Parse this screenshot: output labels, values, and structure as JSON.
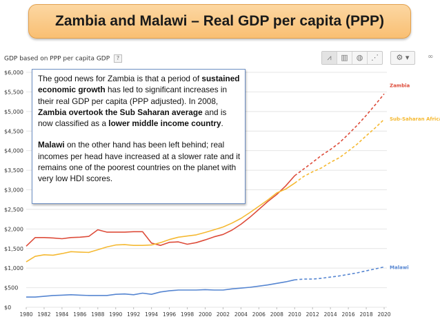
{
  "title": "Zambia and Malawi – Real GDP per capita (PPP)",
  "chart_header": {
    "label": "GDP based on PPP per capita GDP",
    "help": "?"
  },
  "toolbar": {
    "view_icons": [
      "line-chart-icon",
      "bar-chart-icon",
      "map-icon",
      "scatter-chart-icon"
    ],
    "view_glyphs": [
      "⩘",
      "▥",
      "◍",
      "⋰"
    ],
    "gear_glyph": "⚙ ▾",
    "link_glyph": "∞"
  },
  "note": {
    "p1_a": "The good news for Zambia is that a period of ",
    "p1_b": "sustained economic growth",
    "p1_c": " has led to significant increases in their real GDP per capita (PPP adjusted). In 2008, ",
    "p1_d": "Zambia overtook the Sub Saharan average",
    "p1_e": " and is now classified as a ",
    "p1_f": "lower middle income country",
    "p1_g": ".",
    "p2_a": "Malawi",
    "p2_b": " on the other hand has been left behind; real incomes per head have increased at a slower rate and it remains one of the poorest countries on the planet with very low HDI scores."
  },
  "colors": {
    "zambia": "#dd4b39",
    "ssa": "#f5b932",
    "malawi": "#5585d1",
    "grid": "#e4e4e4",
    "axis_text": "#333333"
  },
  "chart_data": {
    "type": "line",
    "title": "",
    "xlabel": "",
    "ylabel": "",
    "xlim": [
      1980,
      2020
    ],
    "ylim": [
      0,
      6000
    ],
    "x": [
      1980,
      1981,
      1982,
      1983,
      1984,
      1985,
      1986,
      1987,
      1988,
      1989,
      1990,
      1991,
      1992,
      1993,
      1994,
      1995,
      1996,
      1997,
      1998,
      1999,
      2000,
      2001,
      2002,
      2003,
      2004,
      2005,
      2006,
      2007,
      2008,
      2009,
      2010,
      2011,
      2012,
      2013,
      2014,
      2015,
      2016,
      2017,
      2018,
      2019,
      2020
    ],
    "x_ticks": [
      "1980",
      "1982",
      "1984",
      "1986",
      "1988",
      "1990",
      "1992",
      "1994",
      "1996",
      "1998",
      "2000",
      "2002",
      "2004",
      "2006",
      "2008",
      "2010",
      "2012",
      "2014",
      "2016",
      "2018",
      "2020"
    ],
    "y_ticks": [
      "$0",
      "$500",
      "$1,000",
      "$1,500",
      "$2,000",
      "$2,500",
      "$3,000",
      "$3,500",
      "$4,000",
      "$4,500",
      "$5,000",
      "$5,500",
      "$6,000"
    ],
    "projection_start": 2010,
    "series": [
      {
        "name": "Zambia",
        "values": [
          1560,
          1780,
          1780,
          1770,
          1750,
          1780,
          1790,
          1810,
          1980,
          1920,
          1920,
          1920,
          1930,
          1930,
          1640,
          1580,
          1660,
          1670,
          1610,
          1650,
          1720,
          1800,
          1860,
          1970,
          2120,
          2300,
          2500,
          2700,
          2880,
          3100,
          3360,
          3530,
          3700,
          3880,
          4030,
          4200,
          4420,
          4650,
          4900,
          5170,
          5450
        ]
      },
      {
        "name": "Sub-Saharan Africa",
        "values": [
          1160,
          1300,
          1340,
          1330,
          1370,
          1420,
          1410,
          1400,
          1470,
          1540,
          1590,
          1600,
          1580,
          1580,
          1590,
          1650,
          1730,
          1790,
          1820,
          1850,
          1910,
          1980,
          2050,
          2150,
          2270,
          2420,
          2580,
          2740,
          2920,
          3020,
          3170,
          3340,
          3460,
          3560,
          3700,
          3820,
          3990,
          4170,
          4380,
          4580,
          4800
        ]
      },
      {
        "name": "Malawi",
        "values": [
          260,
          260,
          280,
          300,
          310,
          320,
          310,
          300,
          300,
          300,
          330,
          340,
          320,
          360,
          330,
          390,
          420,
          440,
          440,
          440,
          450,
          440,
          440,
          470,
          490,
          510,
          540,
          570,
          610,
          650,
          700,
          720,
          720,
          740,
          770,
          800,
          840,
          880,
          930,
          980,
          1030
        ]
      }
    ]
  }
}
